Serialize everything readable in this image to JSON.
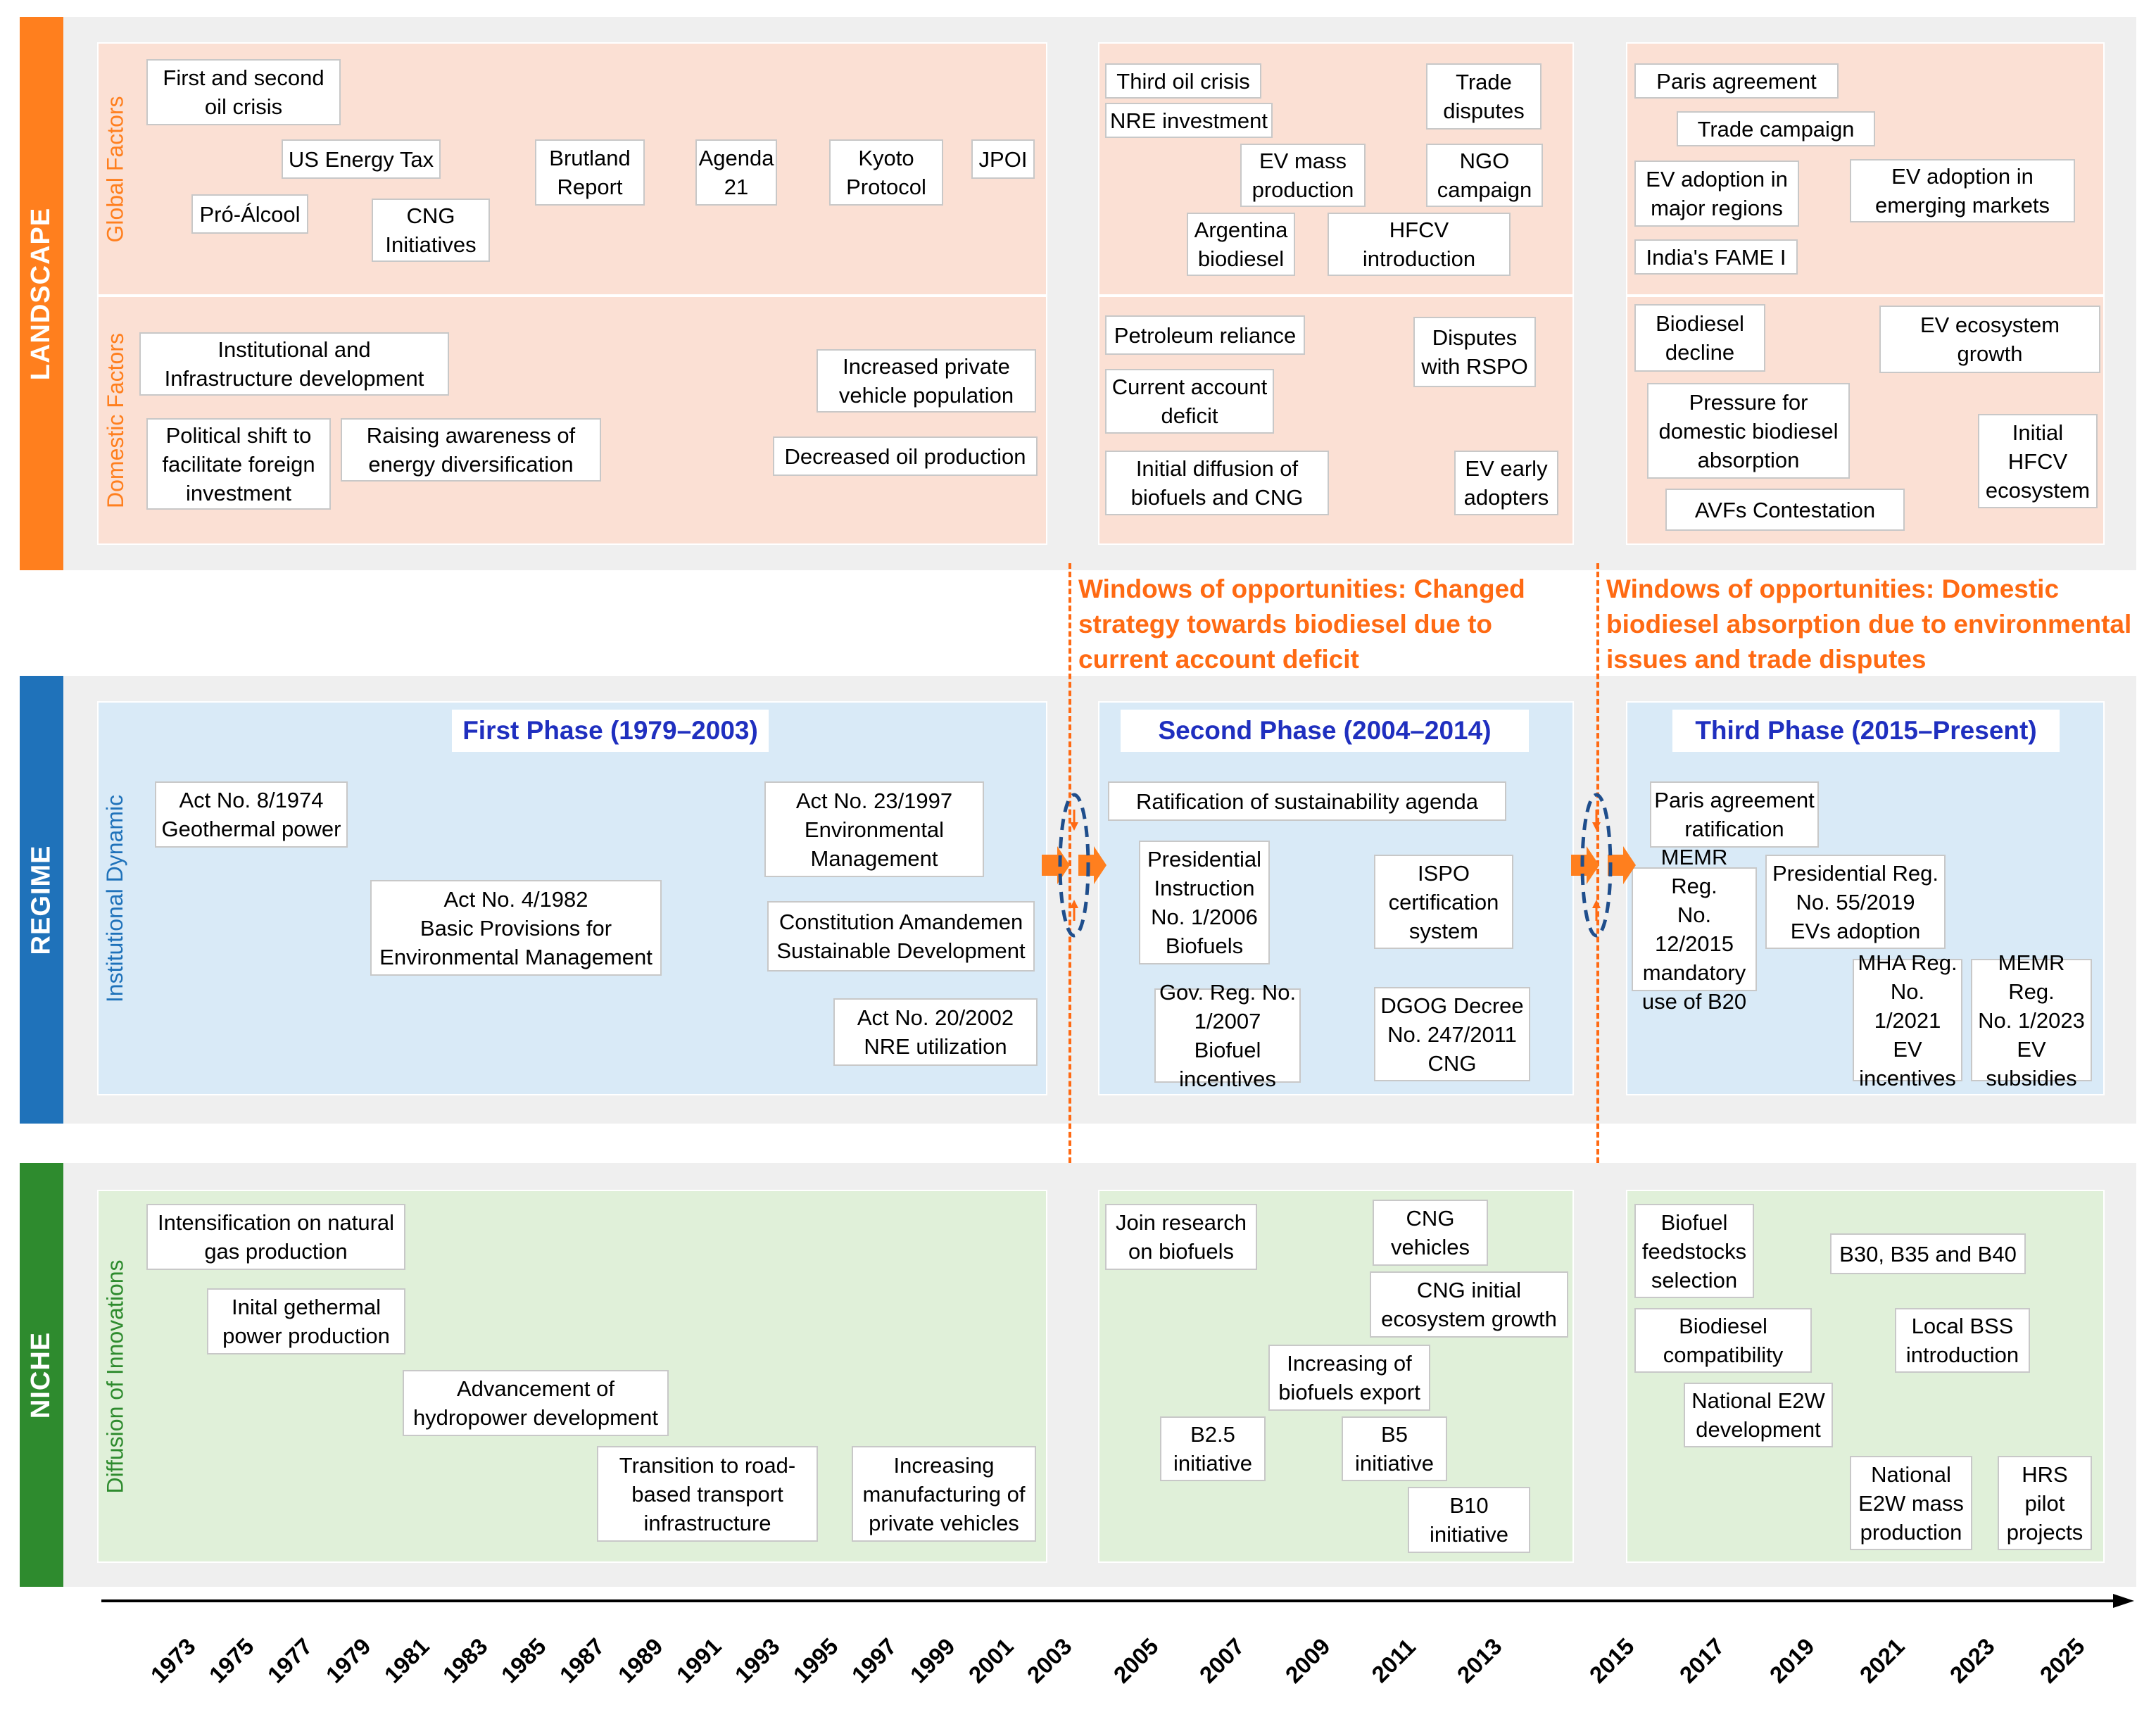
{
  "layers": {
    "landscape": "LANDSCAPE",
    "regime": "REGIME",
    "niche": "NICHE"
  },
  "sublabels": {
    "global": "Global Factors",
    "domestic": "Domestic Factors",
    "institutional": "Institutional Dynamic",
    "diffusion": "Diffusion of Innovations"
  },
  "phases": {
    "first": "First Phase (1979–2003)",
    "second": "Second Phase (2004–2014)",
    "third": "Third Phase (2015–Present)"
  },
  "windows": {
    "w1": "Windows of opportunities: Changed\nstrategy towards biodiesel due to\ncurrent account deficit",
    "w2": "Windows of opportunities: Domestic\nbiodiesel absorption due to environmental\nissues and trade disputes"
  },
  "landscape_global": {
    "first_second_oil": "First and second\noil crisis",
    "us_energy_tax": "US Energy Tax",
    "pro_alcool": "Pró-Álcool",
    "cng_initiatives": "CNG\nInitiatives",
    "brutland": "Brutland\nReport",
    "agenda21": "Agenda\n21",
    "kyoto": "Kyoto\nProtocol",
    "jpoi": "JPOI",
    "third_oil": "Third oil crisis",
    "nre_investment": "NRE investment",
    "trade_disputes": "Trade\ndisputes",
    "ev_mass": "EV mass\nproduction",
    "ngo": "NGO\ncampaign",
    "argentina": "Argentina\nbiodiesel",
    "hfcv_intro": "HFCV\nintroduction",
    "paris": "Paris agreement",
    "trade_campaign": "Trade campaign",
    "ev_major": "EV adoption in\nmajor regions",
    "ev_emerging": "EV adoption in\nemerging markets",
    "fame": "India's FAME I"
  },
  "landscape_domestic": {
    "institutional": "Institutional  and\nInfrastructure development",
    "political_shift": "Political shift to\nfacilitate foreign\ninvestment",
    "awareness": "Raising awareness of\nenergy diversification",
    "private_vehicle": "Increased private\nvehicle population",
    "oil_production": "Decreased oil production",
    "petroleum": "Petroleum reliance",
    "rspo": "Disputes\nwith RSPO",
    "current_account": "Current account\ndeficit",
    "initial_diffusion": "Initial diffusion of\nbiofuels and CNG",
    "ev_early": "EV early\nadopters",
    "biodiesel_decline": "Biodiesel\ndecline",
    "ev_ecosystem": "EV ecosystem\ngrowth",
    "pressure": "Pressure for\ndomestic biodiesel\nabsorption",
    "initial_hfcv": "Initial\nHFCV\necosystem",
    "avfs": "AVFs Contestation"
  },
  "regime": {
    "act8": "Act No. 8/1974\nGeothermal power",
    "act4": "Act No. 4/1982\nBasic Provisions for\nEnvironmental Management",
    "act23": "Act No. 23/1997\nEnvironmental\nManagement",
    "constitution": "Constitution Amandemen\nSustainable Development",
    "act20": "Act No. 20/2002\nNRE utilization",
    "ratification": "Ratification of sustainability agenda",
    "pi1_2006": "Presidential\nInstruction\nNo. 1/2006\nBiofuels",
    "ispo": "ISPO\ncertification\nsystem",
    "govreg": "Gov. Reg. No.\n1/2007 Biofuel\nincentives",
    "dgog": "DGOG Decree\nNo. 247/2011\nCNG",
    "paris_rat": "Paris agreement\nratification",
    "memr12": "MEMR Reg.\nNo. 12/2015\nmandatory\nuse of B20",
    "pres55": "Presidential Reg.\nNo. 55/2019\nEVs adoption",
    "mha1": "MHA Reg.\nNo. 1/2021\nEV\nincentives",
    "memr1": "MEMR Reg.\nNo. 1/2023\nEV\nsubsidies"
  },
  "niche": {
    "natural_gas": "Intensification on natural\ngas production",
    "gethermal": "Inital gethermal\npower production",
    "hydropower": "Advancement of\nhydropower development",
    "road": "Transition to road-\nbased transport\ninfrastructure",
    "manufacturing": "Increasing\nmanufacturing of\nprivate vehicles",
    "join_research": "Join research\non biofuels",
    "cng_vehicles": "CNG\nvehicles",
    "cng_ecosystem": "CNG initial\necosystem growth",
    "biofuels_export": "Increasing of\nbiofuels export",
    "b25": "B2.5\ninitiative",
    "b5": "B5\ninitiative",
    "b10": "B10\ninitiative",
    "feedstocks": "Biofuel\nfeedstocks\nselection",
    "b30": "B30, B35 and B40",
    "compat": "Biodiesel\ncompatibility",
    "bss": "Local BSS\nintroduction",
    "e2w_dev": "National E2W\ndevelopment",
    "e2w_mass": "National\nE2W mass\nproduction",
    "hrs": "HRS\npilot\nprojects"
  },
  "years": [
    "1973",
    "1975",
    "1977",
    "1979",
    "1981",
    "1983",
    "1985",
    "1987",
    "1989",
    "1991",
    "1993",
    "1995",
    "1997",
    "1999",
    "2001",
    "2003",
    "2005",
    "2007",
    "2009",
    "2011",
    "2013",
    "2015",
    "2017",
    "2019",
    "2021",
    "2023",
    "2025"
  ],
  "colors": {
    "landscape": "#ff7f1e",
    "regime": "#1f72ba",
    "niche": "#2e8b2e",
    "window_text": "#ff6a13",
    "phase_text": "#1f2fbf"
  }
}
